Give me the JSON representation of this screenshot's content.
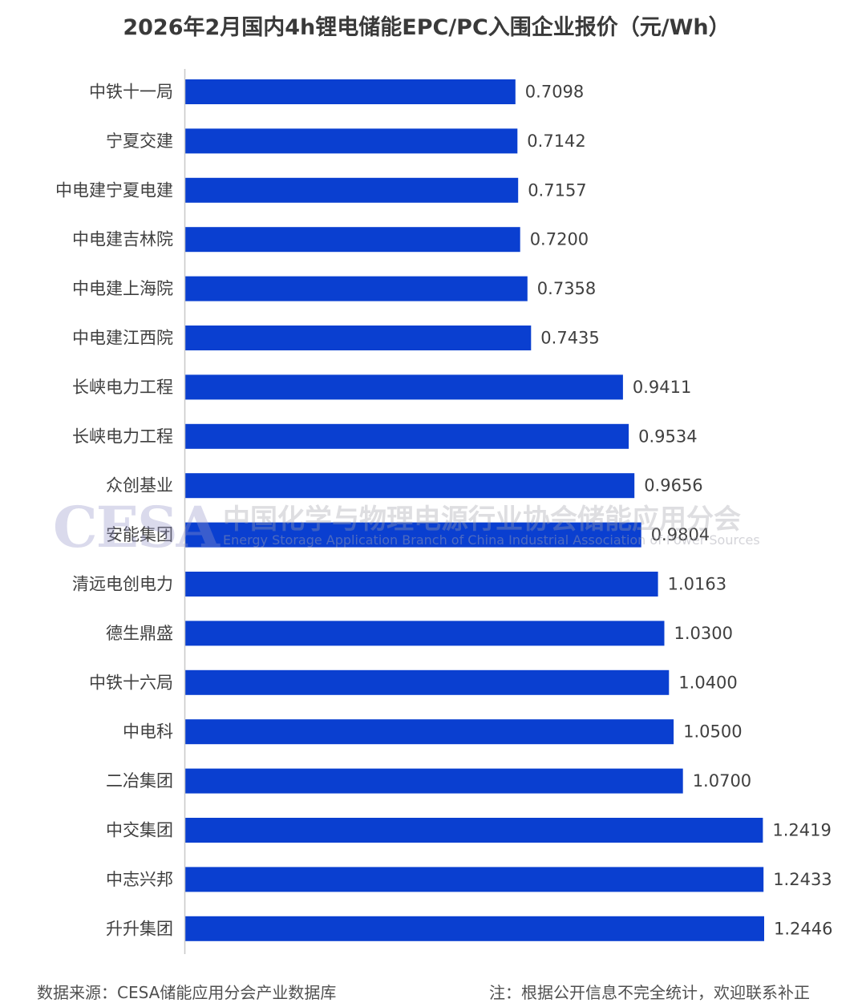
{
  "chart_data": {
    "type": "bar",
    "orientation": "horizontal",
    "title": "2026年2月国内4h锂电储能EPC/PC入围企业报价（元/Wh）",
    "categories": [
      "中铁十一局",
      "宁夏交建",
      "中电建宁夏电建",
      "中电建吉林院",
      "中电建上海院",
      "中电建江西院",
      "长峡电力工程",
      "长峡电力工程",
      "众创基业",
      "安能集团",
      "清远电创电力",
      "德生鼎盛",
      "中铁十六局",
      "中电科",
      "二冶集团",
      "中交集团",
      "中志兴邦",
      "升升集团"
    ],
    "values": [
      0.7098,
      0.7142,
      0.7157,
      0.72,
      0.7358,
      0.7435,
      0.9411,
      0.9534,
      0.9656,
      0.9804,
      1.0163,
      1.03,
      1.04,
      1.05,
      1.07,
      1.2419,
      1.2433,
      1.2446
    ],
    "value_labels": [
      "0.7098",
      "0.7142",
      "0.7157",
      "0.7200",
      "0.7358",
      "0.7435",
      "0.9411",
      "0.9534",
      "0.9656",
      "0.9804",
      "1.0163",
      "1.0300",
      "1.0400",
      "1.0500",
      "1.0700",
      "1.2419",
      "1.2433",
      "1.2446"
    ],
    "bar_color": "#0a3fd0",
    "xlim": [
      0,
      1.2446
    ],
    "grid": false,
    "legend": "none"
  },
  "watermark": {
    "logo": "CESA",
    "cn": "中国化学与物理电源行业协会储能应用分会",
    "en": "Energy Storage Application Branch of China Industrial Association of Power Sources"
  },
  "footer": {
    "source": "数据来源：CESA储能应用分会产业数据库",
    "note": "注：根据公开信息不完全统计，欢迎联系补正"
  }
}
